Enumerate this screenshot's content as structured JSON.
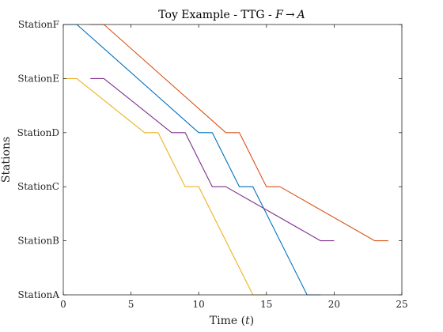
{
  "chart_data": {
    "type": "line",
    "title_prefix": "Toy Example - TTG - ",
    "title_from": "F",
    "title_arrow": "→",
    "title_to": "A",
    "xlabel_prefix": "Time (",
    "xlabel_var": "t",
    "xlabel_suffix": ")",
    "ylabel": "Stations",
    "xlim": [
      0,
      25
    ],
    "ylim": [
      0,
      5
    ],
    "xticks": [
      0,
      5,
      10,
      15,
      20,
      25
    ],
    "xtick_labels": [
      "0",
      "5",
      "10",
      "15",
      "20",
      "25"
    ],
    "yticks": [
      0,
      1,
      2,
      3,
      4,
      5
    ],
    "ytick_labels": [
      "StationA",
      "StationB",
      "StationC",
      "StationD",
      "StationE",
      "StationF"
    ],
    "grid": false,
    "series": [
      {
        "color": "#0072BD",
        "x": [
          0,
          1,
          10,
          11,
          13,
          14,
          18,
          19
        ],
        "y": [
          5,
          5,
          3,
          3,
          2,
          2,
          0,
          0
        ]
      },
      {
        "color": "#D95319",
        "x": [
          2,
          3,
          12,
          13,
          15,
          16,
          23,
          24
        ],
        "y": [
          5,
          5,
          3,
          3,
          2,
          2,
          1,
          1
        ]
      },
      {
        "color": "#EDB120",
        "x": [
          0,
          1,
          6,
          7,
          9,
          10,
          14,
          15
        ],
        "y": [
          4,
          4,
          3,
          3,
          2,
          2,
          0,
          0
        ]
      },
      {
        "color": "#7E2F8E",
        "x": [
          2,
          3,
          8,
          9,
          11,
          12,
          19,
          20
        ],
        "y": [
          4,
          4,
          3,
          3,
          2,
          2,
          1,
          1
        ]
      }
    ]
  }
}
